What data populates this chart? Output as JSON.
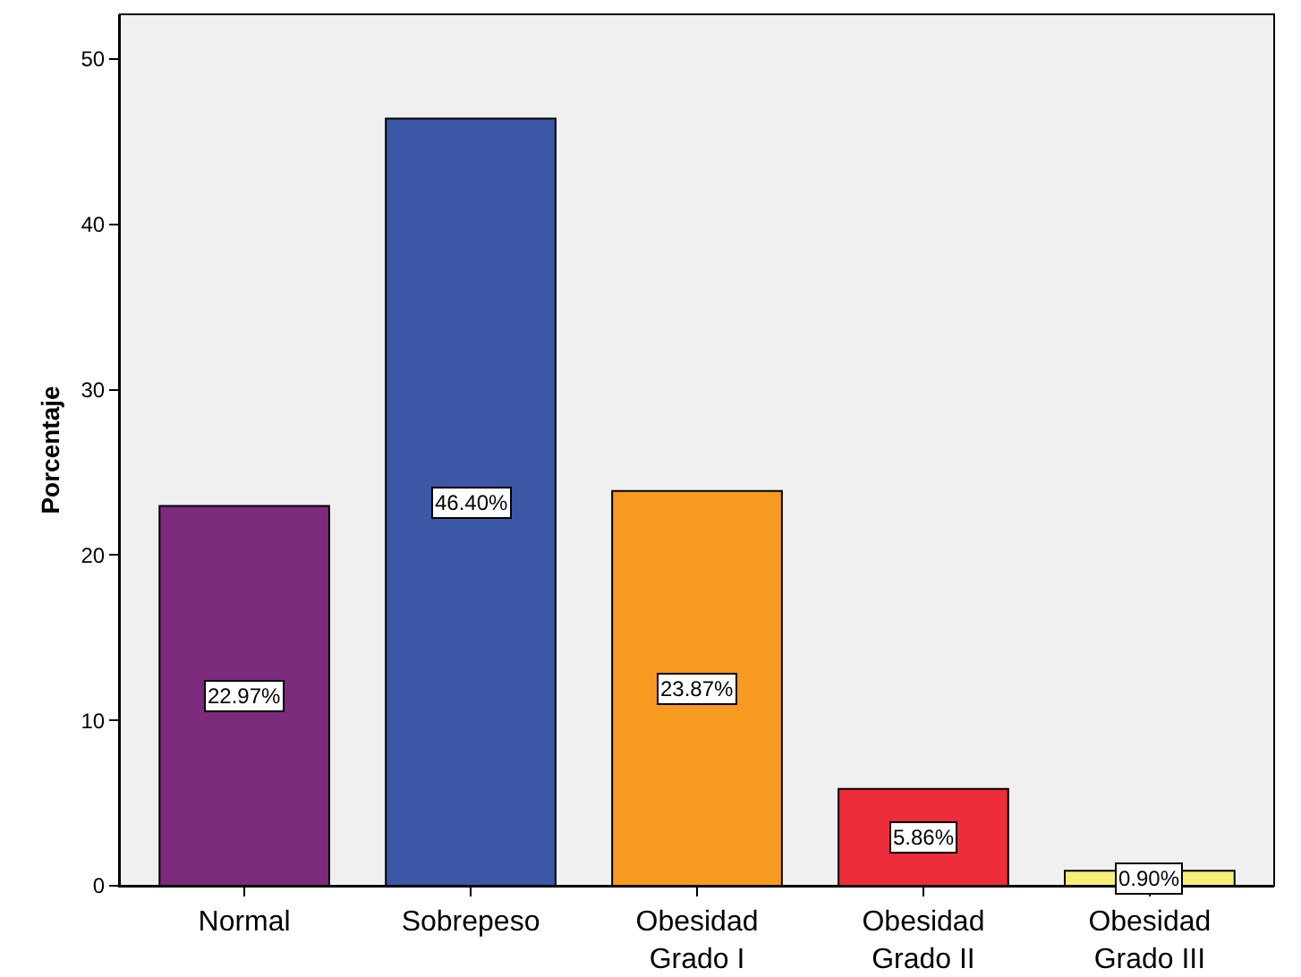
{
  "chart_data": {
    "type": "bar",
    "ylabel": "Porcentaje",
    "categories": [
      "Normal",
      "Sobrepeso",
      "Obesidad\nGrado I",
      "Obesidad\nGrado II",
      "Obesidad\nGrado III"
    ],
    "values": [
      22.97,
      46.4,
      23.87,
      5.86,
      0.9
    ],
    "colors": [
      "#7b2a7c",
      "#3d57a7",
      "#f79a1f",
      "#ee2d3a",
      "#f8ef78"
    ],
    "value_labels": [
      "22.97%",
      "46.40%",
      "23.87%",
      "5.86%",
      "0.90%"
    ],
    "ylim": [
      0,
      52.7
    ],
    "yticks": [
      0,
      10,
      20,
      30,
      40,
      50
    ],
    "grid": false
  }
}
